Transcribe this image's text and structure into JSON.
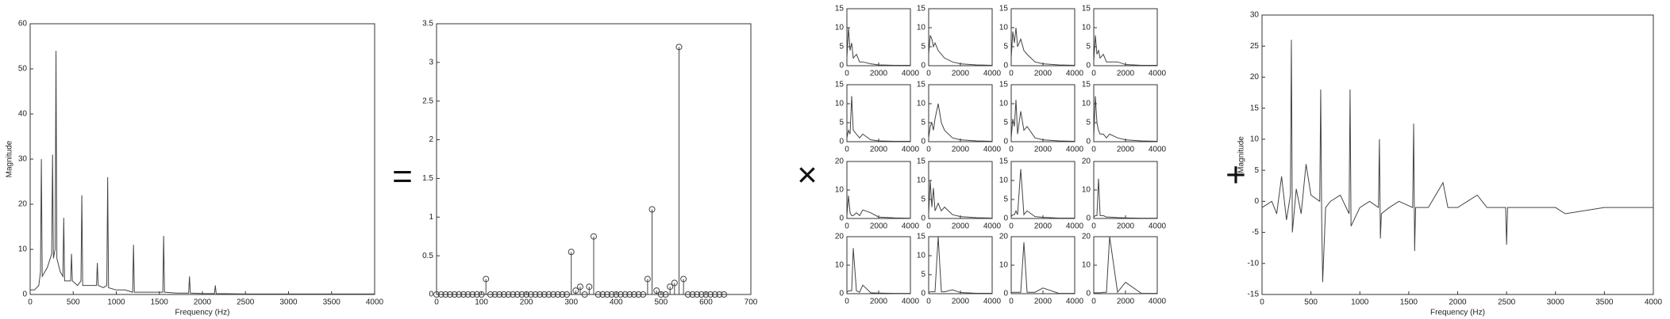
{
  "operators": [
    "=",
    "×",
    "+"
  ],
  "chart_data": [
    {
      "type": "line",
      "xlabel": "Frequency (Hz)",
      "ylabel": "Magnitude",
      "color": "#444",
      "xlim": [
        0,
        4000
      ],
      "xticks": [
        0,
        500,
        1000,
        1500,
        2000,
        2500,
        3000,
        3500,
        4000
      ],
      "ylim": [
        0,
        60
      ],
      "yticks": [
        0,
        10,
        20,
        30,
        40,
        50,
        60
      ],
      "x": [
        0,
        50,
        100,
        120,
        130,
        140,
        200,
        250,
        260,
        270,
        290,
        300,
        310,
        350,
        380,
        390,
        400,
        450,
        470,
        480,
        490,
        550,
        590,
        600,
        610,
        700,
        770,
        780,
        790,
        850,
        890,
        900,
        910,
        1000,
        1100,
        1190,
        1200,
        1210,
        1300,
        1400,
        1540,
        1550,
        1560,
        1700,
        1840,
        1850,
        1860,
        2000,
        2140,
        2150,
        2160,
        2500,
        3000,
        3500,
        4000
      ],
      "values": [
        1,
        1,
        2,
        5,
        30,
        4,
        6,
        9,
        31,
        8,
        10,
        54,
        8,
        5,
        4,
        17,
        3,
        3,
        3,
        9,
        3,
        2,
        3,
        22,
        2,
        2,
        2,
        7,
        2,
        1.5,
        2,
        26,
        1.5,
        1,
        1,
        0.5,
        11,
        0.5,
        0.5,
        0.5,
        0.5,
        13,
        0.5,
        0.3,
        0.3,
        4,
        0.3,
        0.2,
        0.2,
        2,
        0.2,
        0.1,
        0.1,
        0.1,
        0.1
      ]
    },
    {
      "type": "stem",
      "color": "#444",
      "xlim": [
        0,
        700
      ],
      "xticks": [
        0,
        100,
        200,
        300,
        400,
        500,
        600,
        700
      ],
      "ylim": [
        0,
        3.5
      ],
      "yticks": [
        0,
        0.5,
        1,
        1.5,
        2,
        2.5,
        3,
        3.5
      ],
      "x": [
        0,
        10,
        20,
        30,
        40,
        50,
        60,
        70,
        80,
        90,
        100,
        110,
        120,
        130,
        140,
        150,
        160,
        170,
        180,
        190,
        200,
        210,
        220,
        230,
        240,
        250,
        260,
        270,
        280,
        290,
        300,
        310,
        320,
        330,
        340,
        350,
        360,
        370,
        380,
        390,
        400,
        410,
        420,
        430,
        440,
        450,
        460,
        470,
        480,
        490,
        500,
        510,
        520,
        530,
        540,
        550,
        560,
        570,
        580,
        590,
        600,
        610,
        620,
        630,
        640
      ],
      "values": [
        0,
        0,
        0,
        0,
        0,
        0,
        0,
        0,
        0,
        0,
        0,
        0.2,
        0,
        0,
        0,
        0,
        0,
        0,
        0,
        0,
        0,
        0,
        0,
        0,
        0,
        0,
        0,
        0,
        0,
        0,
        0.55,
        0.05,
        0.1,
        0,
        0.1,
        0.75,
        0,
        0,
        0,
        0,
        0,
        0,
        0,
        0,
        0,
        0,
        0,
        0.2,
        1.1,
        0.05,
        0,
        0,
        0.1,
        0.15,
        3.2,
        0.2,
        0,
        0,
        0,
        0,
        0,
        0,
        0,
        0,
        0
      ]
    },
    {
      "type": "line",
      "color": "#444",
      "xlim": [
        0,
        4000
      ],
      "xticks": [
        0,
        2000,
        4000
      ],
      "ylim": [
        0,
        15
      ],
      "yticks": [
        0,
        5,
        10,
        15
      ],
      "x": [
        0,
        100,
        200,
        300,
        400,
        600,
        800,
        1000,
        1500,
        2000,
        3000,
        4000
      ],
      "values": [
        2,
        10,
        4,
        6,
        2,
        3,
        1,
        1,
        0.5,
        0.2,
        0.1,
        0.1
      ]
    },
    {
      "type": "line",
      "color": "#444",
      "xlim": [
        0,
        4000
      ],
      "xticks": [
        0,
        2000,
        4000
      ],
      "ylim": [
        0,
        15
      ],
      "yticks": [
        0,
        5,
        10,
        15
      ],
      "x": [
        0,
        100,
        200,
        300,
        400,
        600,
        800,
        1000,
        1500,
        2000,
        3000,
        4000
      ],
      "values": [
        3,
        8,
        7,
        5,
        6,
        4,
        3,
        2,
        1,
        0.5,
        0.2,
        0.1
      ]
    },
    {
      "type": "line",
      "color": "#444",
      "xlim": [
        0,
        4000
      ],
      "xticks": [
        0,
        2000,
        4000
      ],
      "ylim": [
        0,
        15
      ],
      "yticks": [
        0,
        5,
        10,
        15
      ],
      "x": [
        0,
        100,
        200,
        300,
        400,
        600,
        800,
        1000,
        1500,
        2000,
        3000,
        4000
      ],
      "values": [
        2,
        9,
        6,
        10,
        5,
        7,
        4,
        3,
        1,
        0.5,
        0.2,
        0.1
      ]
    },
    {
      "type": "line",
      "color": "#444",
      "xlim": [
        0,
        4000
      ],
      "xticks": [
        0,
        2000,
        4000
      ],
      "ylim": [
        0,
        15
      ],
      "yticks": [
        0,
        5,
        10,
        15
      ],
      "x": [
        0,
        100,
        200,
        300,
        400,
        600,
        800,
        1000,
        1500,
        2000,
        3000,
        4000
      ],
      "values": [
        1,
        8,
        3,
        4,
        2,
        3,
        1,
        1,
        1,
        0.3,
        0.1,
        0.1
      ]
    },
    {
      "type": "line",
      "color": "#444",
      "xlim": [
        0,
        4000
      ],
      "xticks": [
        0,
        2000,
        4000
      ],
      "ylim": [
        0,
        15
      ],
      "yticks": [
        0,
        5,
        10,
        15
      ],
      "x": [
        0,
        100,
        200,
        300,
        400,
        600,
        800,
        1000,
        1500,
        2000,
        3000,
        4000
      ],
      "values": [
        1,
        3,
        2,
        12,
        3,
        2,
        1,
        2,
        0.5,
        0.2,
        0.1,
        0.1
      ]
    },
    {
      "type": "line",
      "color": "#444",
      "xlim": [
        0,
        4000
      ],
      "xticks": [
        0,
        2000,
        4000
      ],
      "ylim": [
        0,
        15
      ],
      "yticks": [
        0,
        5,
        10,
        15
      ],
      "x": [
        0,
        100,
        200,
        300,
        400,
        600,
        800,
        1000,
        1500,
        2000,
        3000,
        4000
      ],
      "values": [
        1,
        4,
        5,
        3,
        6,
        10,
        5,
        3,
        1,
        0.5,
        0.2,
        0.1
      ]
    },
    {
      "type": "line",
      "color": "#444",
      "xlim": [
        0,
        4000
      ],
      "xticks": [
        0,
        2000,
        4000
      ],
      "ylim": [
        0,
        15
      ],
      "yticks": [
        0,
        5,
        10,
        15
      ],
      "x": [
        0,
        100,
        200,
        300,
        400,
        600,
        800,
        1000,
        1500,
        2000,
        3000,
        4000
      ],
      "values": [
        1,
        6,
        4,
        11,
        2,
        8,
        3,
        4,
        1,
        0.5,
        0.2,
        0.1
      ]
    },
    {
      "type": "line",
      "color": "#444",
      "xlim": [
        0,
        4000
      ],
      "xticks": [
        0,
        2000,
        4000
      ],
      "ylim": [
        0,
        15
      ],
      "yticks": [
        0,
        5,
        10,
        15
      ],
      "x": [
        0,
        100,
        200,
        300,
        400,
        600,
        800,
        1000,
        1500,
        2000,
        3000,
        4000
      ],
      "values": [
        1,
        12,
        5,
        3,
        2,
        2,
        1,
        2,
        1,
        0.5,
        0.2,
        0.1
      ]
    },
    {
      "type": "line",
      "color": "#444",
      "xlim": [
        0,
        4000
      ],
      "xticks": [
        0,
        2000,
        4000
      ],
      "ylim": [
        0,
        20
      ],
      "yticks": [
        0,
        10,
        20
      ],
      "x": [
        0,
        100,
        200,
        300,
        400,
        600,
        800,
        1000,
        1500,
        2000,
        3000,
        4000
      ],
      "values": [
        1,
        8,
        2,
        1,
        1,
        2,
        1,
        3,
        2,
        0.5,
        0.2,
        0.1
      ]
    },
    {
      "type": "line",
      "color": "#444",
      "xlim": [
        0,
        4000
      ],
      "xticks": [
        0,
        2000,
        4000
      ],
      "ylim": [
        0,
        15
      ],
      "yticks": [
        0,
        5,
        10,
        15
      ],
      "x": [
        0,
        100,
        200,
        300,
        400,
        600,
        800,
        1000,
        1500,
        2000,
        3000,
        4000
      ],
      "values": [
        1,
        10,
        3,
        8,
        2,
        4,
        2,
        3,
        1,
        0.5,
        0.2,
        0.1
      ]
    },
    {
      "type": "line",
      "color": "#444",
      "xlim": [
        0,
        4000
      ],
      "xticks": [
        0,
        2000,
        4000
      ],
      "ylim": [
        0,
        15
      ],
      "yticks": [
        0,
        5,
        10,
        15
      ],
      "x": [
        0,
        100,
        200,
        300,
        400,
        600,
        800,
        1000,
        1500,
        2000,
        3000,
        4000
      ],
      "values": [
        0.5,
        1,
        1,
        2,
        1,
        13,
        1,
        2,
        0.5,
        0.3,
        0.1,
        0.1
      ]
    },
    {
      "type": "line",
      "color": "#444",
      "xlim": [
        0,
        4000
      ],
      "xticks": [
        0,
        2000,
        4000
      ],
      "ylim": [
        0,
        20
      ],
      "yticks": [
        0,
        10,
        20
      ],
      "x": [
        0,
        100,
        200,
        300,
        400,
        600,
        800,
        1000,
        1500,
        2000,
        3000,
        4000
      ],
      "values": [
        0.5,
        1,
        1,
        14,
        1,
        1,
        0.5,
        0.5,
        0.3,
        0.2,
        0.1,
        0.1
      ]
    },
    {
      "type": "line",
      "color": "#444",
      "xlim": [
        0,
        4000
      ],
      "xticks": [
        0,
        2000,
        4000
      ],
      "ylim": [
        0,
        20
      ],
      "yticks": [
        0,
        10,
        20
      ],
      "x": [
        0,
        100,
        200,
        300,
        400,
        600,
        800,
        1000,
        1500,
        2000,
        3000,
        4000
      ],
      "values": [
        0.5,
        1,
        1,
        1,
        16,
        1,
        0.5,
        3,
        0.3,
        0.2,
        0.1,
        0.1
      ]
    },
    {
      "type": "line",
      "color": "#444",
      "xlim": [
        0,
        4000
      ],
      "xticks": [
        0,
        2000,
        4000
      ],
      "ylim": [
        0,
        15
      ],
      "yticks": [
        0,
        5,
        10,
        15
      ],
      "x": [
        0,
        100,
        200,
        300,
        400,
        600,
        800,
        1000,
        1500,
        2000,
        3000,
        4000
      ],
      "values": [
        0.3,
        0.5,
        0.5,
        0.5,
        0.5,
        15,
        0.5,
        0.5,
        1,
        0.3,
        0.1,
        0.1
      ]
    },
    {
      "type": "line",
      "color": "#444",
      "xlim": [
        0,
        4000
      ],
      "xticks": [
        0,
        2000,
        4000
      ],
      "ylim": [
        0,
        20
      ],
      "yticks": [
        0,
        10,
        20
      ],
      "x": [
        0,
        100,
        200,
        300,
        400,
        600,
        800,
        1000,
        1500,
        2000,
        3000,
        4000
      ],
      "values": [
        0.3,
        0.5,
        0.5,
        0.5,
        0.5,
        0.5,
        18,
        0.5,
        0.5,
        2,
        0.1,
        0.1
      ]
    },
    {
      "type": "line",
      "color": "#444",
      "xlim": [
        0,
        4000
      ],
      "xticks": [
        0,
        2000,
        4000
      ],
      "ylim": [
        0,
        20
      ],
      "yticks": [
        0,
        10,
        20
      ],
      "x": [
        0,
        100,
        200,
        300,
        400,
        600,
        800,
        1000,
        1500,
        2000,
        3000,
        4000
      ],
      "values": [
        0.3,
        0.3,
        0.3,
        0.3,
        0.3,
        0.5,
        0.5,
        20,
        0.5,
        4,
        0.1,
        0.1
      ]
    },
    {
      "type": "line",
      "xlabel": "Frequency (Hz)",
      "ylabel": "Magnitude",
      "color": "#444",
      "xlim": [
        0,
        4000
      ],
      "xticks": [
        0,
        500,
        1000,
        1500,
        2000,
        2500,
        3000,
        3500,
        4000
      ],
      "ylim": [
        -15,
        30
      ],
      "yticks": [
        -15,
        -10,
        -5,
        0,
        5,
        10,
        15,
        20,
        25,
        30
      ],
      "x": [
        0,
        100,
        150,
        200,
        250,
        290,
        300,
        310,
        350,
        400,
        450,
        500,
        590,
        600,
        610,
        620,
        650,
        700,
        800,
        890,
        900,
        910,
        1000,
        1100,
        1190,
        1200,
        1210,
        1220,
        1300,
        1400,
        1540,
        1550,
        1560,
        1570,
        1700,
        1850,
        1900,
        2000,
        2200,
        2300,
        2490,
        2500,
        2510,
        2700,
        3000,
        3100,
        3500,
        3800,
        4000
      ],
      "values": [
        -1,
        0,
        -2,
        4,
        -3,
        1,
        26,
        -5,
        2,
        -2,
        6,
        1,
        0,
        18,
        -3,
        -13,
        -1,
        0,
        1,
        -2,
        18,
        -4,
        -1,
        0,
        -1,
        10,
        -6,
        -2,
        -1,
        0,
        -1,
        12.5,
        -8,
        -1,
        -1,
        3,
        -1,
        -1,
        1,
        -1,
        -1,
        -7,
        -1,
        -1,
        -1,
        -2,
        -1,
        -1,
        -1
      ]
    }
  ]
}
